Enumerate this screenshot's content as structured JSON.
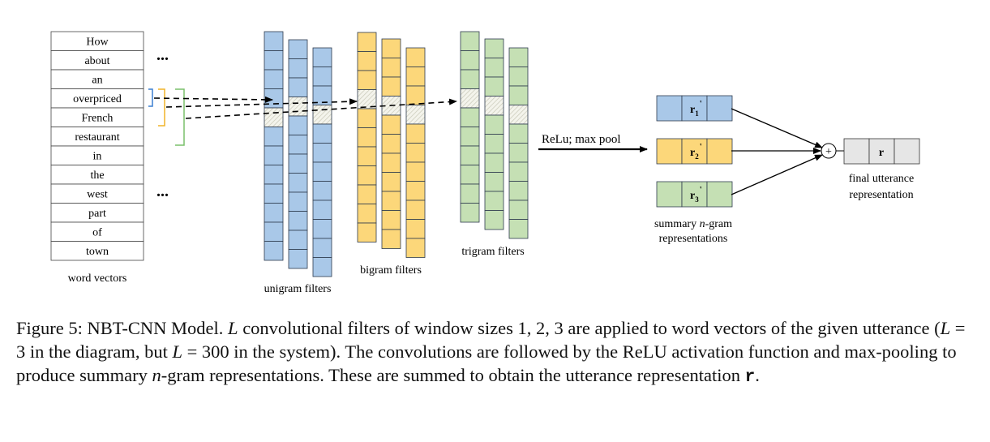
{
  "words": [
    "How",
    "about",
    "an",
    "overpriced",
    "French",
    "restaurant",
    "in",
    "the",
    "west",
    "part",
    "of",
    "town"
  ],
  "ellipsis": "...",
  "labels": {
    "word_vectors": "word vectors",
    "unigram": "unigram filters",
    "bigram": "bigram filters",
    "trigram": "trigram filters",
    "relu": "ReLu; max pool",
    "summary_line1": "summary ",
    "summary_n": "n",
    "summary_line1b": "-gram",
    "summary_line2": "representations",
    "final_line1": "final utterance",
    "final_line2": "representation",
    "plus": "+",
    "r": "r",
    "r1_base": "r",
    "r1_sub": "1",
    "r2_base": "r",
    "r2_sub": "2",
    "r3_base": "r",
    "r3_sub": "3",
    "prime": "'"
  },
  "colors": {
    "blue": "#a9c8e8",
    "yellow": "#fcd77a",
    "green": "#c5e0b4",
    "gray": "#e6e6e6",
    "bracket_blue": "#3a7fd0",
    "bracket_yellow": "#f0b429",
    "bracket_green": "#7ac06b"
  },
  "caption": {
    "p1": "Figure 5: NBT-CNN Model. ",
    "L1": "L",
    "p2": " convolutional filters of window sizes 1, 2, 3 are applied to word vectors of the given utterance (",
    "L2": "L",
    "p3": " = 3 in the diagram, but ",
    "L3": "L",
    "p4": " = 300 in the system). The convolutions are followed by the ReLU activation function and max-pooling to produce summary ",
    "n": "n",
    "p5": "-gram representations. These are summed to obtain the utterance representation ",
    "r": "r",
    "p6": "."
  }
}
